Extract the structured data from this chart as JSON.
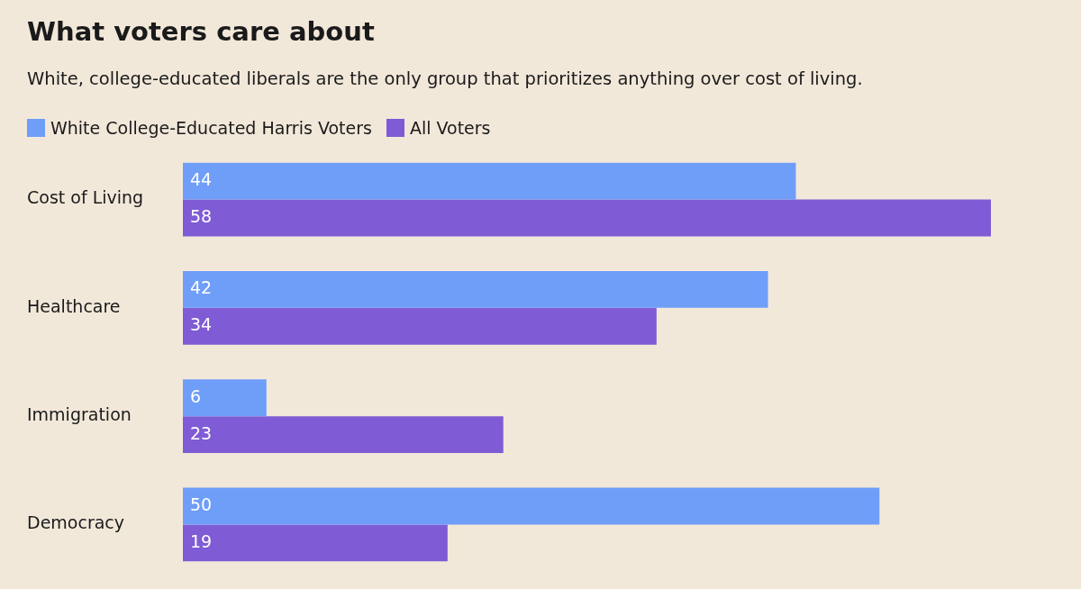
{
  "chart_data": {
    "type": "bar",
    "orientation": "horizontal",
    "title": "What voters care about",
    "subtitle": "White, college-educated liberals are the only group that prioritizes anything over cost of living.",
    "categories": [
      "Cost of Living",
      "Healthcare",
      "Immigration",
      "Democracy"
    ],
    "series": [
      {
        "name": "White College-Educated Harris Voters",
        "color": "#6f9ef8",
        "values": [
          44,
          42,
          6,
          50
        ]
      },
      {
        "name": "All Voters",
        "color": "#7f5bd5",
        "values": [
          58,
          34,
          23,
          19
        ]
      }
    ],
    "data_labels": true,
    "legend": "top left"
  }
}
